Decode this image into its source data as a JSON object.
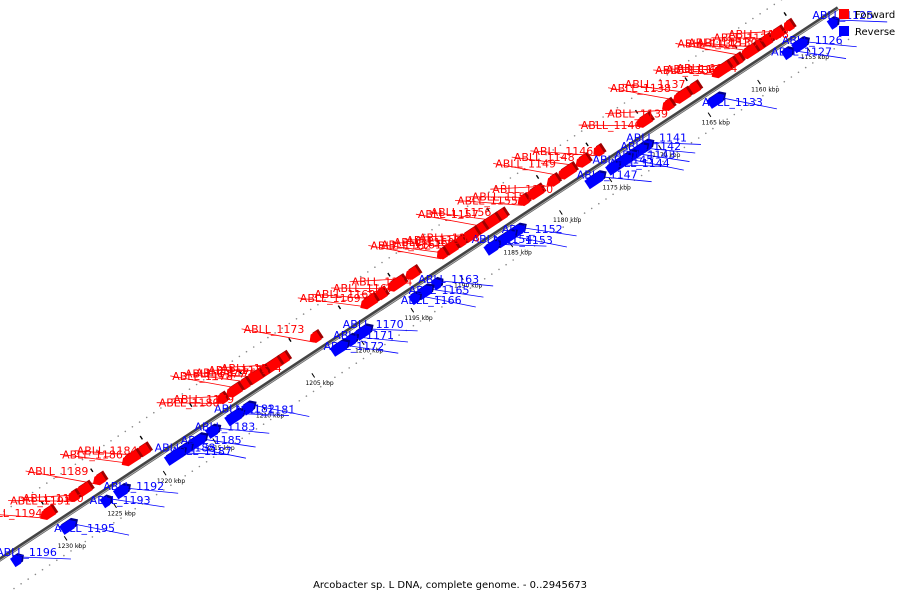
{
  "caption": "Arcobacter sp. L DNA, complete genome. - 0..2945673",
  "legend": {
    "forward": {
      "label": "Forward",
      "color": "#ff0000"
    },
    "reverse": {
      "label": "Reverse",
      "color": "#0000ff"
    }
  },
  "scale": {
    "start_kbp": 1151,
    "end_kbp": 1236
  },
  "ticks": [
    "1155 kbp",
    "1160 kbp",
    "1165 kbp",
    "1170 kbp",
    "1175 kbp",
    "1180 kbp",
    "1185 kbp",
    "1190 kbp",
    "1195 kbp",
    "1200 kbp",
    "1205 kbp",
    "1210 kbp",
    "1215 kbp",
    "1220 kbp",
    "1225 kbp",
    "1230 kbp"
  ],
  "reverse_genes": [
    {
      "name": "ABLL_1125",
      "pos": 1152.0
    },
    {
      "name": "ABLL_1126",
      "pos": 1155.3
    },
    {
      "name": "ABLL_1127",
      "pos": 1156.6
    },
    {
      "name": "ABLL_1133",
      "pos": 1163.8
    },
    {
      "name": "ABLL_1141",
      "pos": 1170.8
    },
    {
      "name": "ABLL_1142",
      "pos": 1171.6
    },
    {
      "name": "ABLL_1143",
      "pos": 1172.4
    },
    {
      "name": "ABLL_1144",
      "pos": 1173.2
    },
    {
      "name": "ABLL_1145",
      "pos": 1174.2
    },
    {
      "name": "ABLL_1147",
      "pos": 1176.0
    },
    {
      "name": "ABLL_1152",
      "pos": 1183.8
    },
    {
      "name": "ABLL_1153",
      "pos": 1185.0
    },
    {
      "name": "ABLL_1154",
      "pos": 1186.4
    },
    {
      "name": "ABLL_1163",
      "pos": 1192.0
    },
    {
      "name": "ABLL_1165",
      "pos": 1193.2
    },
    {
      "name": "ABLL_1166",
      "pos": 1194.2
    },
    {
      "name": "ABLL_1170",
      "pos": 1199.4
    },
    {
      "name": "ABLL_1171",
      "pos": 1200.6
    },
    {
      "name": "ABLL_1172",
      "pos": 1201.8
    },
    {
      "name": "ABLL_1181",
      "pos": 1211.0
    },
    {
      "name": "ABLL_1182",
      "pos": 1212.4
    },
    {
      "name": "ABLL_1183",
      "pos": 1214.6
    },
    {
      "name": "ABLL_1185",
      "pos": 1216.2
    },
    {
      "name": "ABLL_1187",
      "pos": 1217.4
    },
    {
      "name": "ABLL_1188",
      "pos": 1218.4
    },
    {
      "name": "ABLL_1192",
      "pos": 1223.8
    },
    {
      "name": "ABLL_1193",
      "pos": 1225.4
    },
    {
      "name": "ABLL_1195",
      "pos": 1229.2
    },
    {
      "name": "ABLL_1196",
      "pos": 1234.4
    }
  ],
  "forward_genes": [
    {
      "name": "ABLL_1128",
      "pos": 1155.4
    },
    {
      "name": "ABLL_1129",
      "pos": 1156.6
    },
    {
      "name": "ABLL_1130",
      "pos": 1158.0
    },
    {
      "name": "ABLL_1131",
      "pos": 1158.6
    },
    {
      "name": "ABLL_1132",
      "pos": 1159.4
    },
    {
      "name": "ABLL_1134",
      "pos": 1160.6
    },
    {
      "name": "ABLL_1135",
      "pos": 1161.4
    },
    {
      "name": "ABLL_1136",
      "pos": 1162.2
    },
    {
      "name": "ABLL_1137",
      "pos": 1165.0
    },
    {
      "name": "ABLL_1138",
      "pos": 1166.2
    },
    {
      "name": "ABLL_1139",
      "pos": 1167.6
    },
    {
      "name": "ABLL_1140",
      "pos": 1170.0
    },
    {
      "name": "ABLL_1146",
      "pos": 1174.6
    },
    {
      "name": "ABLL_1148",
      "pos": 1176.2
    },
    {
      "name": "ABLL_1149",
      "pos": 1177.8
    },
    {
      "name": "ABLL_1150",
      "pos": 1179.2
    },
    {
      "name": "ABLL_1151",
      "pos": 1181.0
    },
    {
      "name": "ABLL_1155",
      "pos": 1182.2
    },
    {
      "name": "ABLL_1156",
      "pos": 1184.6
    },
    {
      "name": "ABLL_1157",
      "pos": 1185.6
    },
    {
      "name": "ABLL_1158",
      "pos": 1186.6
    },
    {
      "name": "ABLL_1159",
      "pos": 1187.6
    },
    {
      "name": "ABLL_1160",
      "pos": 1188.6
    },
    {
      "name": "ABLL_1161",
      "pos": 1189.6
    },
    {
      "name": "ABLL_1162",
      "pos": 1190.4
    },
    {
      "name": "ABLL_1164",
      "pos": 1193.4
    },
    {
      "name": "ABLL_1167",
      "pos": 1195.0
    },
    {
      "name": "ABLL_1168",
      "pos": 1196.6
    },
    {
      "name": "ABLL_1169",
      "pos": 1197.8
    },
    {
      "name": "ABLL_1173",
      "pos": 1203.2
    },
    {
      "name": "ABLL_1174",
      "pos": 1206.6
    },
    {
      "name": "ABLL_1175",
      "pos": 1207.6
    },
    {
      "name": "ABLL_1176",
      "pos": 1208.6
    },
    {
      "name": "ABLL_1177",
      "pos": 1209.4
    },
    {
      "name": "ABLL_1178",
      "pos": 1210.4
    },
    {
      "name": "ABLL_1179",
      "pos": 1211.4
    },
    {
      "name": "ABLL_1180",
      "pos": 1212.6
    },
    {
      "name": "ABLL_1184",
      "pos": 1220.6
    },
    {
      "name": "ABLL_1186",
      "pos": 1221.8
    },
    {
      "name": "ABLL_1189",
      "pos": 1225.0
    },
    {
      "name": "ABLL_1190",
      "pos": 1226.6
    },
    {
      "name": "ABLL_1191",
      "pos": 1227.6
    },
    {
      "name": "ABLL_1194",
      "pos": 1230.2
    }
  ]
}
